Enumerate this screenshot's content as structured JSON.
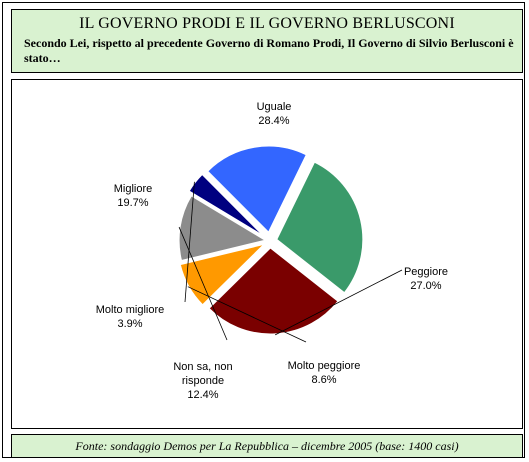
{
  "header": {
    "title": "IL GOVERNO PRODI E IL GOVERNO BERLUSCONI",
    "subtitle": "Secondo Lei, rispetto al precedente Governo di Romano Prodi, Il Governo di Silvio Berlusconi è stato…"
  },
  "footer": {
    "source": "Fonte: sondaggio Demos per La Repubblica – dicembre 2005 (base: 1400 casi)"
  },
  "chart_data": {
    "type": "pie",
    "title": "",
    "slices": [
      {
        "label": "Uguale",
        "value": 28.4,
        "value_label": "28.4%",
        "color": "#3a9a6a"
      },
      {
        "label": "Peggiore",
        "value": 27.0,
        "value_label": "27.0%",
        "color": "#7a0000"
      },
      {
        "label": "Molto peggiore",
        "value": 8.6,
        "value_label": "8.6%",
        "color": "#ff9900"
      },
      {
        "label": "Non sa, non risponde",
        "value": 12.4,
        "value_label": "12.4%",
        "color": "#8c8c8c"
      },
      {
        "label": "Molto migliore",
        "value": 3.9,
        "value_label": "3.9%",
        "color": "#000080"
      },
      {
        "label": "Migliore",
        "value": 19.7,
        "value_label": "19.7%",
        "color": "#3366ff"
      }
    ]
  }
}
